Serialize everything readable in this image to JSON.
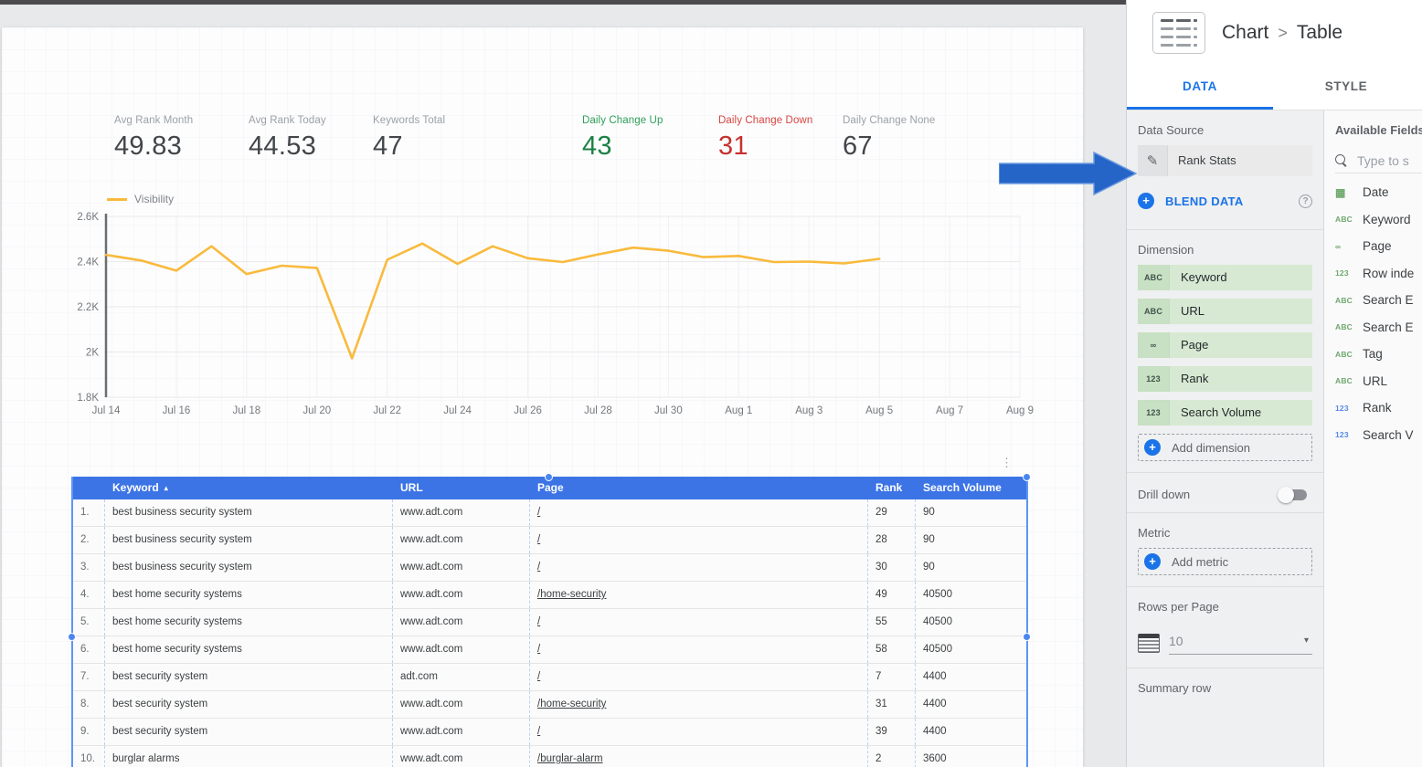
{
  "colors": {
    "accent_blue": "#1a73e8",
    "table_header_blue": "#3c74e6",
    "selection_blue": "#4a86f0",
    "arrow_blue": "#2565c7",
    "line_orange": "#f9ba3c",
    "green": "#1b8043",
    "red": "#c5312e",
    "chip_green": "#d7e9d2"
  },
  "scorecards": [
    {
      "label": "Avg Rank Month",
      "value": "49.83",
      "tone": "dark"
    },
    {
      "label": "Avg Rank Today",
      "value": "44.53",
      "tone": "dark"
    },
    {
      "label": "Keywords Total",
      "value": "47",
      "tone": "dark"
    },
    {
      "label": "Daily Change Up",
      "value": "43",
      "tone": "green"
    },
    {
      "label": "Daily Change Down",
      "value": "31",
      "tone": "red"
    },
    {
      "label": "Daily Change None",
      "value": "67",
      "tone": "dark"
    }
  ],
  "chart_data": {
    "type": "line",
    "title": "",
    "legend": [
      "Visibility"
    ],
    "legend_position": "top-left",
    "grid": true,
    "x_ticks": [
      "Jul 14",
      "Jul 16",
      "Jul 18",
      "Jul 20",
      "Jul 22",
      "Jul 24",
      "Jul 26",
      "Jul 28",
      "Jul 30",
      "Aug 1",
      "Aug 3",
      "Aug 5",
      "Aug 7",
      "Aug 9"
    ],
    "x_total_days": 27,
    "y_ticks": [
      "2.6K",
      "2.4K",
      "2.2K",
      "2K",
      "1.8K"
    ],
    "y_tick_values": [
      2600,
      2400,
      2200,
      2000,
      1800
    ],
    "ylim": [
      1800,
      2600
    ],
    "series": [
      {
        "name": "Visibility",
        "color": "#f9ba3c",
        "x_dates": [
          "Jul 14",
          "Jul 15",
          "Jul 16",
          "Jul 17",
          "Jul 18",
          "Jul 19",
          "Jul 20",
          "Jul 21",
          "Jul 22",
          "Jul 23",
          "Jul 24",
          "Jul 25",
          "Jul 26",
          "Jul 27",
          "Jul 28",
          "Jul 29",
          "Jul 30",
          "Jul 31",
          "Aug 1",
          "Aug 2",
          "Aug 3",
          "Aug 4",
          "Aug 5"
        ],
        "values": [
          2430,
          2405,
          2360,
          2468,
          2345,
          2382,
          2372,
          1972,
          2408,
          2480,
          2390,
          2468,
          2415,
          2398,
          2432,
          2462,
          2448,
          2420,
          2425,
          2398,
          2400,
          2392,
          2412
        ]
      }
    ]
  },
  "table": {
    "menu_icon": "⋮",
    "sort_glyph": "▴",
    "columns": [
      "Keyword",
      "URL",
      "Page",
      "Rank",
      "Search Volume"
    ],
    "sorted_column": "Keyword",
    "rows": [
      [
        "1.",
        "best business security system",
        "www.adt.com",
        "/",
        "29",
        "90"
      ],
      [
        "2.",
        "best business security system",
        "www.adt.com",
        "/",
        "28",
        "90"
      ],
      [
        "3.",
        "best business security system",
        "www.adt.com",
        "/",
        "30",
        "90"
      ],
      [
        "4.",
        "best home security systems",
        "www.adt.com",
        "/home-security",
        "49",
        "40500"
      ],
      [
        "5.",
        "best home security systems",
        "www.adt.com",
        "/",
        "55",
        "40500"
      ],
      [
        "6.",
        "best home security systems",
        "www.adt.com",
        "/",
        "58",
        "40500"
      ],
      [
        "7.",
        "best security system",
        "adt.com",
        "/",
        "7",
        "4400"
      ],
      [
        "8.",
        "best security system",
        "www.adt.com",
        "/home-security",
        "31",
        "4400"
      ],
      [
        "9.",
        "best security system",
        "www.adt.com",
        "/",
        "39",
        "4400"
      ],
      [
        "10.",
        "burglar alarms",
        "www.adt.com",
        "/burglar-alarm",
        "2",
        "3600"
      ]
    ]
  },
  "panel": {
    "header": {
      "crumb_parent": "Chart",
      "crumb_sep": ">",
      "crumb_current": "Table"
    },
    "tabs": [
      {
        "label": "DATA",
        "active": true
      },
      {
        "label": "STYLE",
        "active": false
      }
    ],
    "data_source": {
      "label": "Data Source",
      "pencil_glyph": "✎",
      "name": "Rank Stats",
      "blend_label": "BLEND DATA",
      "plus_glyph": "+",
      "help_glyph": "?"
    },
    "dimension": {
      "label": "Dimension",
      "chips": [
        {
          "kind": "text",
          "glyph": "ABC",
          "label": "Keyword"
        },
        {
          "kind": "text",
          "glyph": "ABC",
          "label": "URL"
        },
        {
          "kind": "link",
          "glyph": "∞",
          "label": "Page"
        },
        {
          "kind": "number",
          "glyph": "123",
          "label": "Rank"
        },
        {
          "kind": "number",
          "glyph": "123",
          "label": "Search Volume"
        }
      ],
      "add_label": "Add dimension"
    },
    "drill_down": {
      "label": "Drill down",
      "enabled": false
    },
    "metric": {
      "label": "Metric",
      "add_label": "Add metric"
    },
    "rows_per_page": {
      "label": "Rows per Page",
      "value": "10",
      "caret_glyph": "▾"
    },
    "summary_row": {
      "label": "Summary row"
    }
  },
  "fields_panel": {
    "title": "Available Fields",
    "search_placeholder": "Type to s",
    "fields": [
      {
        "kind": "date",
        "glyph": "▦",
        "label": "Date",
        "role": "dimension"
      },
      {
        "kind": "text",
        "glyph": "ABC",
        "label": "Keyword",
        "role": "dimension"
      },
      {
        "kind": "link",
        "glyph": "∞",
        "label": "Page",
        "role": "dimension"
      },
      {
        "kind": "number",
        "glyph": "123",
        "label": "Row inde",
        "role": "dimension"
      },
      {
        "kind": "text",
        "glyph": "ABC",
        "label": "Search E",
        "role": "dimension"
      },
      {
        "kind": "text",
        "glyph": "ABC",
        "label": "Search E",
        "role": "dimension"
      },
      {
        "kind": "text",
        "glyph": "ABC",
        "label": "Tag",
        "role": "dimension"
      },
      {
        "kind": "text",
        "glyph": "ABC",
        "label": "URL",
        "role": "dimension"
      },
      {
        "kind": "number",
        "glyph": "123",
        "label": "Rank",
        "role": "metric"
      },
      {
        "kind": "number",
        "glyph": "123",
        "label": "Search V",
        "role": "metric"
      }
    ]
  }
}
